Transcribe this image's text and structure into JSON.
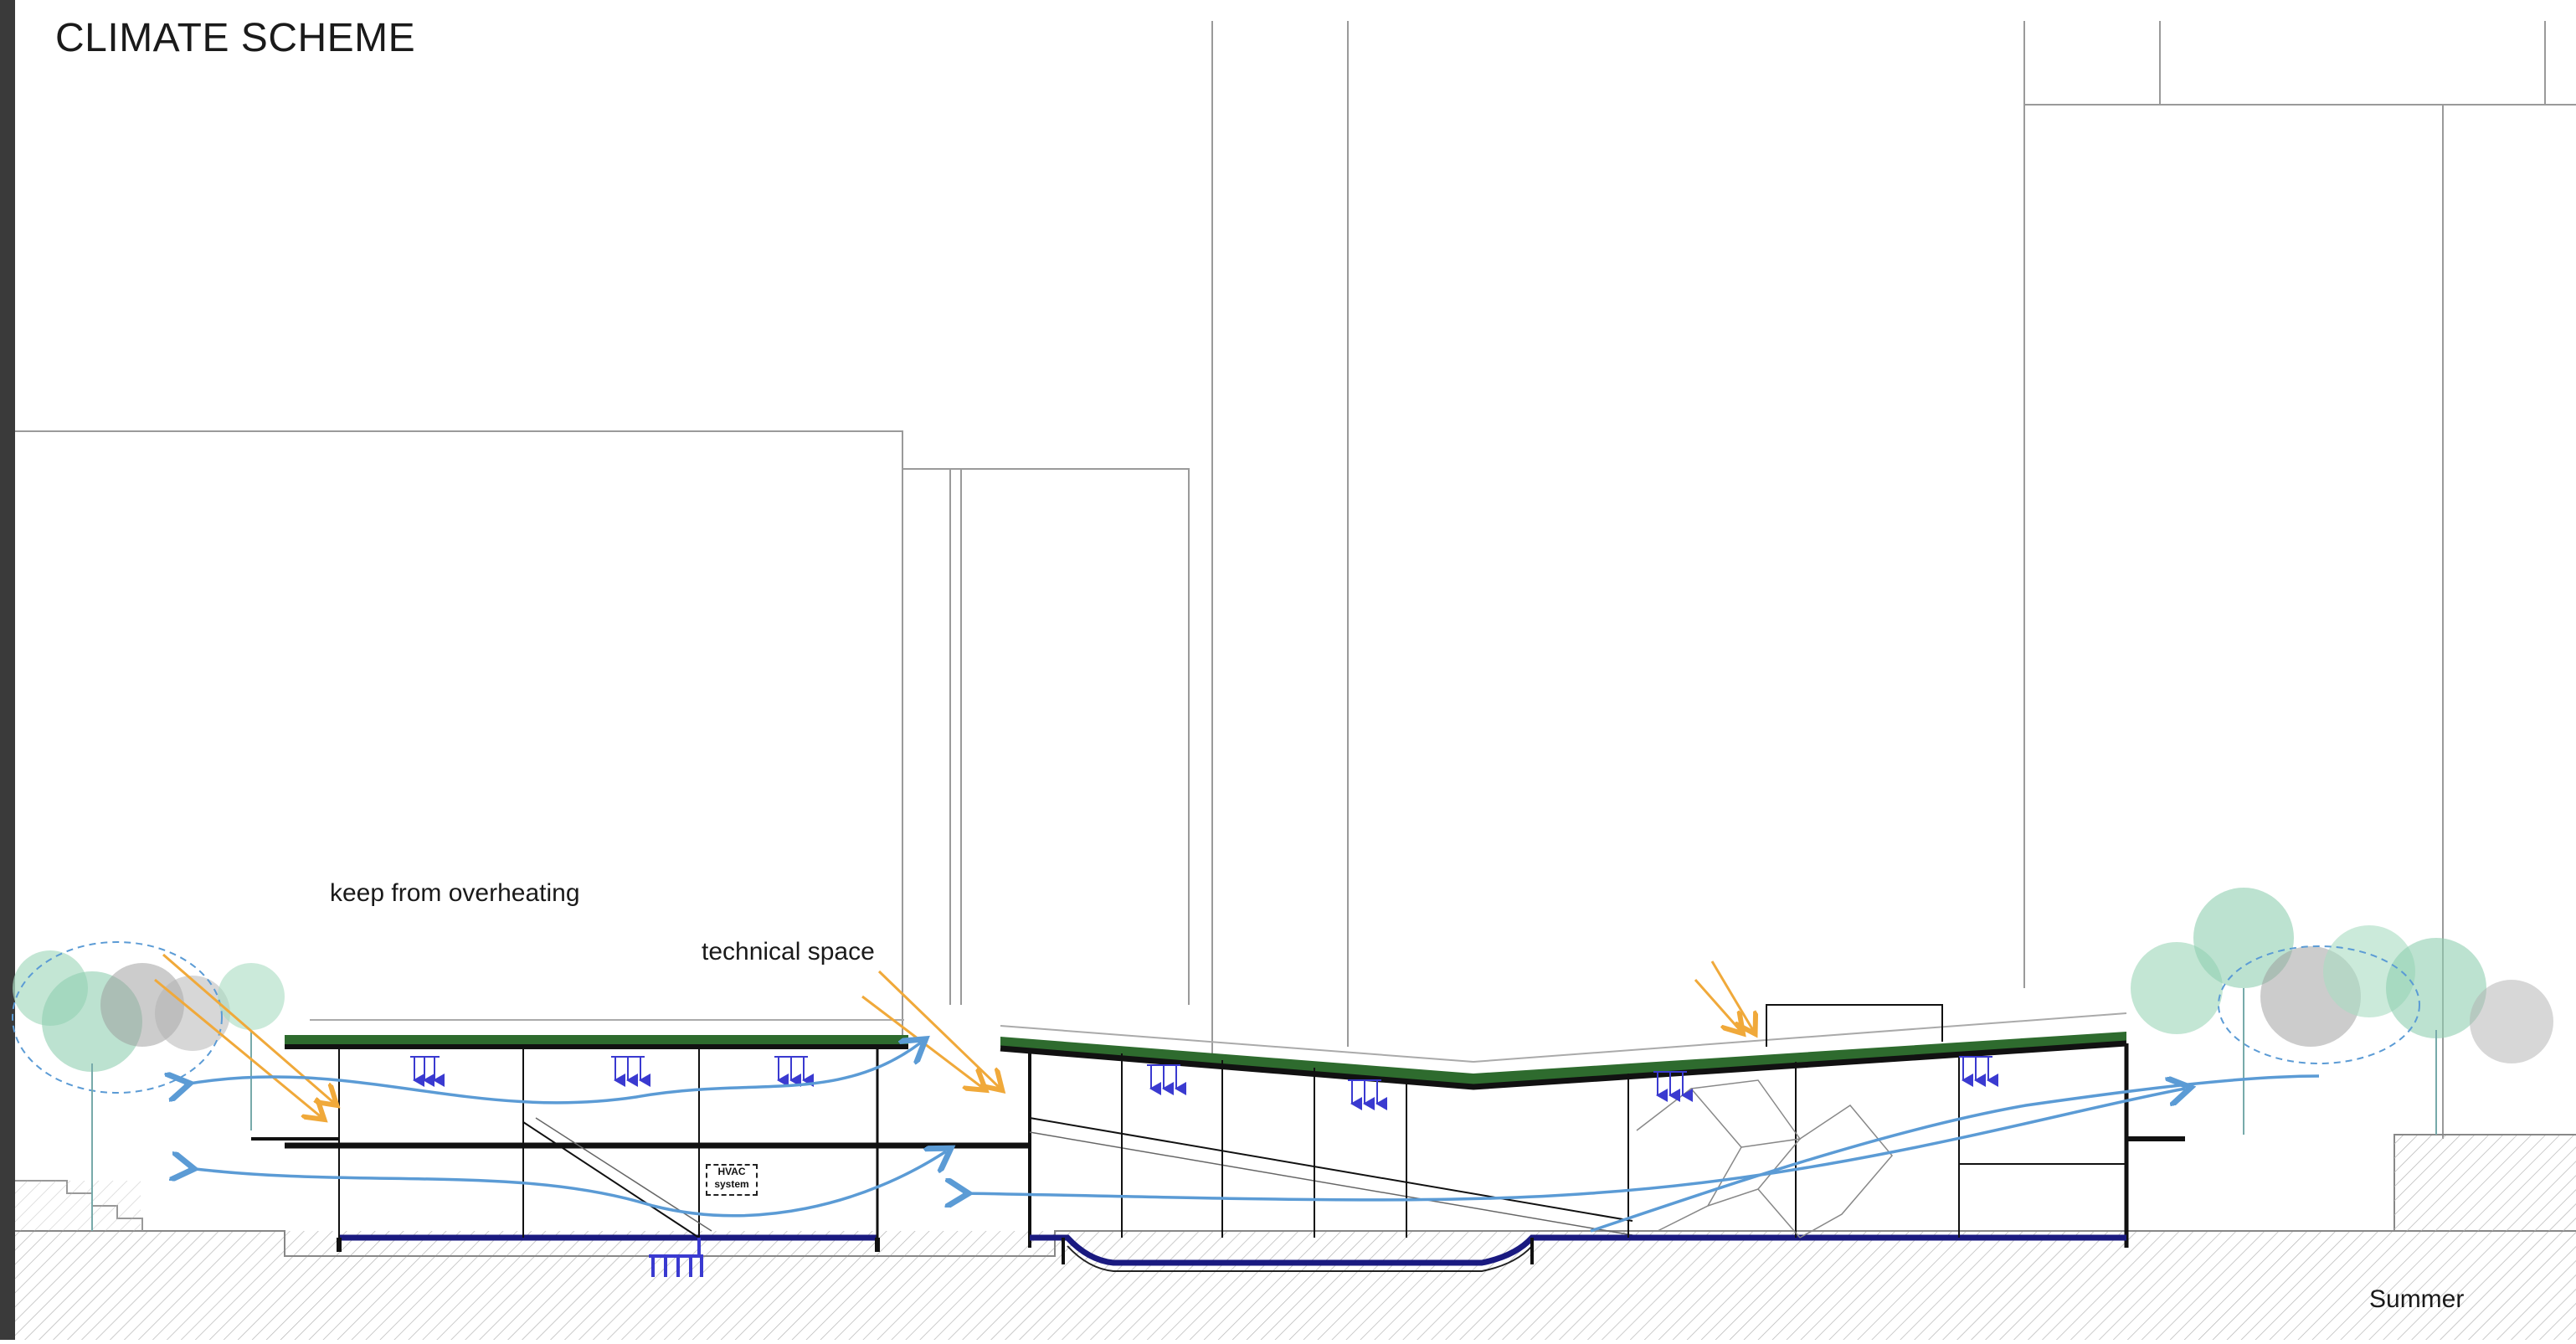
{
  "title": "CLIMATE SCHEME",
  "annotations": {
    "overheating": "keep from overheating",
    "technical_space": "technical space",
    "hvac": "HVAC system",
    "season": "Summer"
  },
  "colors": {
    "airflow": "#5b9bd5",
    "sun_rays": "#f0a93a",
    "cooling_arrows": "#3a3ad0",
    "green_roof": "#2e6b2e",
    "structure": "#111111",
    "tree_foliage": "#8fcfb0",
    "ground_hatch": "#999999"
  },
  "icons": [
    "sun-ray-arrow-icon",
    "airflow-arrow-icon",
    "cooling-down-arrow-icon",
    "tree-icon",
    "geothermal-probe-icon"
  ]
}
